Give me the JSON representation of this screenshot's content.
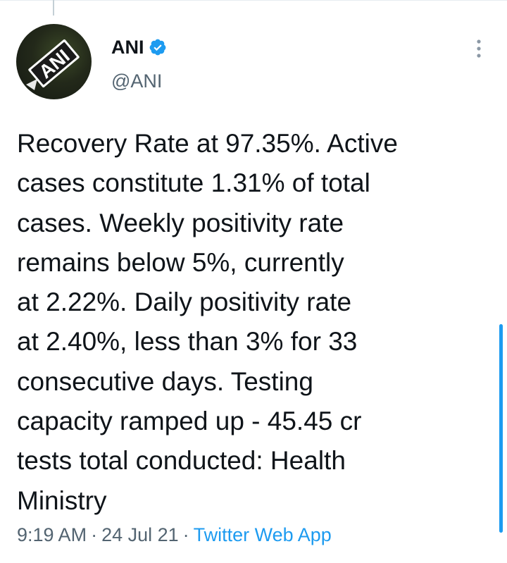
{
  "tweet": {
    "author": {
      "display_name": "ANI",
      "handle": "@ANI",
      "verified": true,
      "avatar_text": "ANI"
    },
    "text": "Recovery Rate at 97.35%. Active\ncases constitute 1.31% of total\ncases. Weekly positivity rate\nremains below 5%, currently\nat 2.22%. Daily positivity rate\nat 2.40%, less than 3% for 33\nconsecutive days. Testing\ncapacity ramped up - 45.45 cr\ntests total conducted: Health\nMinistry",
    "time": "9:19 AM",
    "date": "24 Jul 21",
    "separator": "·",
    "source": "Twitter Web App"
  },
  "icons": {
    "verified": "verified-badge-icon",
    "more": "more-vertical-icon"
  },
  "colors": {
    "text": "#0f1419",
    "secondary": "#536471",
    "accent": "#1d9bf0",
    "verified": "#1d9bf0"
  }
}
